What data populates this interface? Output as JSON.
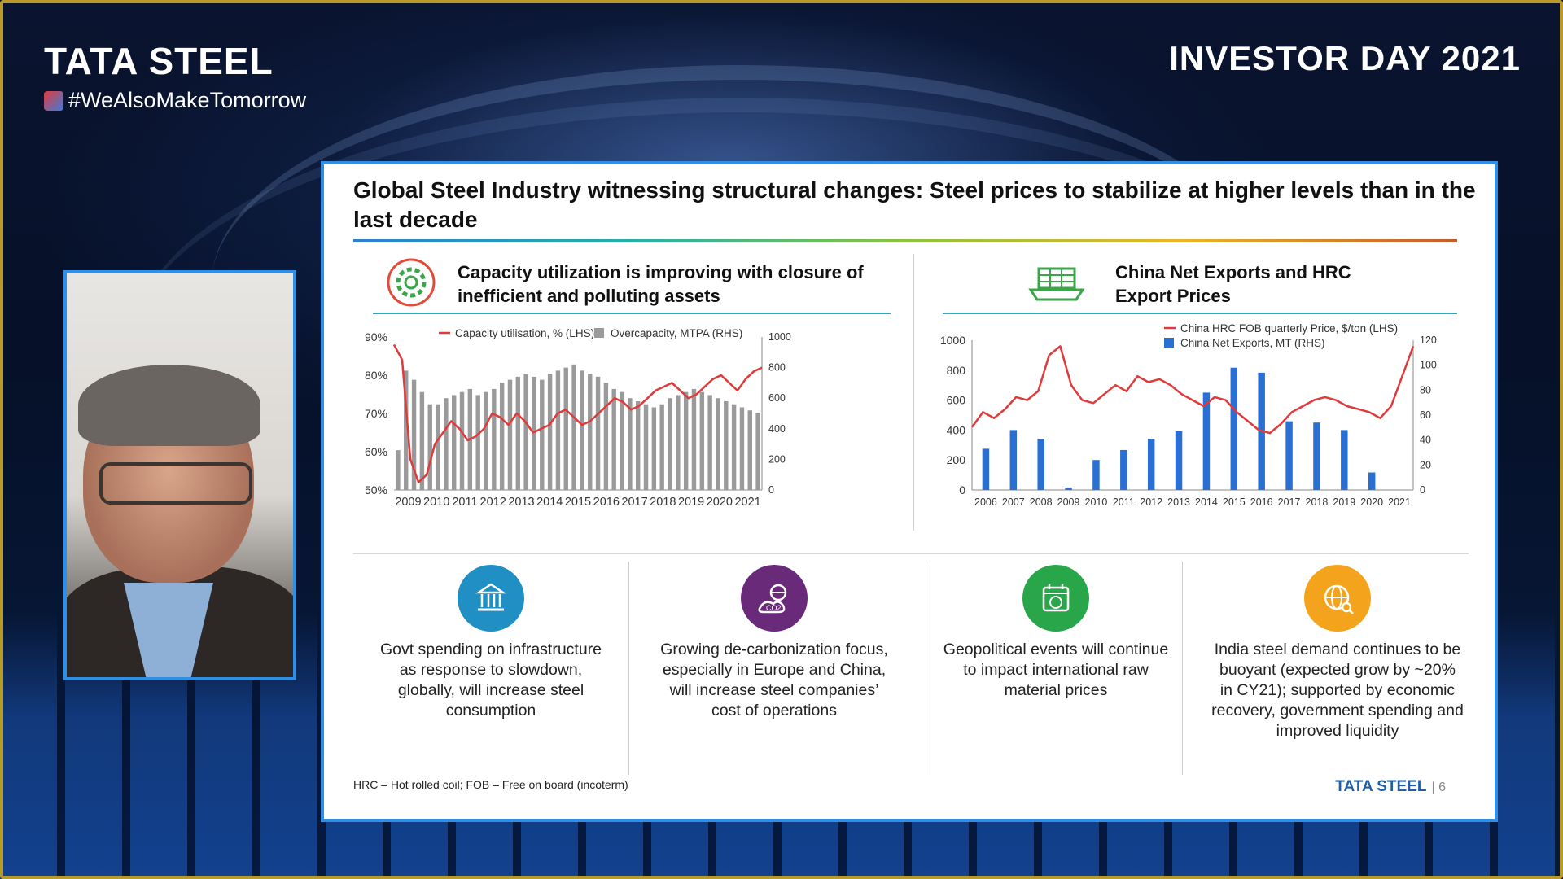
{
  "brand": {
    "logo": "TATA STEEL",
    "hashtag": "#WeAlsoMakeTomorrow"
  },
  "event": {
    "title": "INVESTOR DAY 2021"
  },
  "slide": {
    "title": "Global Steel Industry witnessing structural changes: Steel prices to stabilize at higher levels than in the last decade",
    "left_panel_title": "Capacity utilization is improving with closure of inefficient and polluting assets",
    "right_panel_title": "China Net Exports and HRC Export Prices",
    "footnote": "HRC – Hot rolled coil; FOB – Free on board (incoterm)",
    "footer_brand": "TATA STEEL",
    "page_number": "6",
    "bullets": [
      {
        "text": "Govt spending on infrastructure as response to slowdown, globally, will increase steel consumption",
        "icon": "government-building-icon",
        "color": "#1f8fc4"
      },
      {
        "text": "Growing de-carbonization focus, especially in Europe and China, will increase steel companies’ cost of operations",
        "icon": "co2-globe-icon",
        "color": "#6a2a7a"
      },
      {
        "text": "Geopolitical events will continue to impact international raw material prices",
        "icon": "calendar-globe-icon",
        "color": "#2aa64a"
      },
      {
        "text": "India steel demand continues to be buoyant (expected grow by ~20% in CY21); supported by economic recovery, government spending and improved liquidity",
        "icon": "globe-network-icon",
        "color": "#f4a41c"
      }
    ]
  },
  "chart_data": [
    {
      "type": "bar+line",
      "legend": [
        "Capacity utilisation, % (LHS)",
        "Overcapacity, MTPA (RHS)"
      ],
      "x_labels": [
        "2009",
        "2010",
        "2011",
        "2012",
        "2013",
        "2014",
        "2015",
        "2016",
        "2017",
        "2018",
        "2019",
        "2020",
        "2021"
      ],
      "y_left_ticks": [
        "90%",
        "80%",
        "70%",
        "60%",
        "50%"
      ],
      "y_right_ticks": [
        "1000",
        "800",
        "600",
        "400",
        "200",
        "0"
      ],
      "ylim_left": [
        50,
        90
      ],
      "ylim_right": [
        0,
        1000
      ],
      "line_color": "#e03a3a",
      "bar_color": "#9a9a9a",
      "utilisation_pct": [
        88,
        84,
        58,
        52,
        54,
        62,
        65,
        68,
        66,
        63,
        64,
        66,
        70,
        69,
        67,
        70,
        68,
        65,
        66,
        67,
        70,
        71,
        69,
        67,
        68,
        70,
        72,
        74,
        73,
        71,
        72,
        74,
        76,
        77,
        78,
        76,
        74,
        75,
        77,
        79,
        80,
        78,
        76,
        79,
        81,
        82
      ],
      "overcapacity_mtpa": [
        260,
        780,
        720,
        640,
        560,
        560,
        600,
        620,
        640,
        660,
        620,
        640,
        660,
        700,
        720,
        740,
        760,
        740,
        720,
        760,
        780,
        800,
        820,
        780,
        760,
        740,
        700,
        660,
        640,
        600,
        580,
        560,
        540,
        560,
        600,
        620,
        640,
        660,
        640,
        620,
        600,
        580,
        560,
        540,
        520,
        500
      ]
    },
    {
      "type": "bar+line",
      "legend": [
        "China HRC FOB quarterly Price, $/ton (LHS)",
        "China Net Exports, MT (RHS)"
      ],
      "x_labels": [
        "2006",
        "2007",
        "2008",
        "2009",
        "2010",
        "2011",
        "2012",
        "2013",
        "2014",
        "2015",
        "2016",
        "2017",
        "2018",
        "2019",
        "2020",
        "2021"
      ],
      "y_left_ticks": [
        "1000",
        "800",
        "600",
        "400",
        "200",
        "0"
      ],
      "y_right_ticks": [
        "120",
        "100",
        "80",
        "60",
        "40",
        "20",
        "0"
      ],
      "ylim_left": [
        0,
        1000
      ],
      "ylim_right": [
        0,
        120
      ],
      "line_color": "#e03a3a",
      "bar_color": "#2a6fd4",
      "net_exports_mt": [
        33,
        48,
        41,
        2,
        24,
        32,
        41,
        47,
        78,
        98,
        94,
        55,
        54,
        48,
        14,
        0
      ],
      "hrc_price": [
        420,
        520,
        480,
        540,
        620,
        600,
        660,
        900,
        960,
        700,
        600,
        580,
        640,
        700,
        660,
        760,
        720,
        740,
        700,
        640,
        600,
        560,
        620,
        600,
        520,
        460,
        400,
        380,
        440,
        520,
        560,
        600,
        620,
        600,
        560,
        540,
        520,
        480,
        560,
        760,
        960
      ]
    }
  ]
}
